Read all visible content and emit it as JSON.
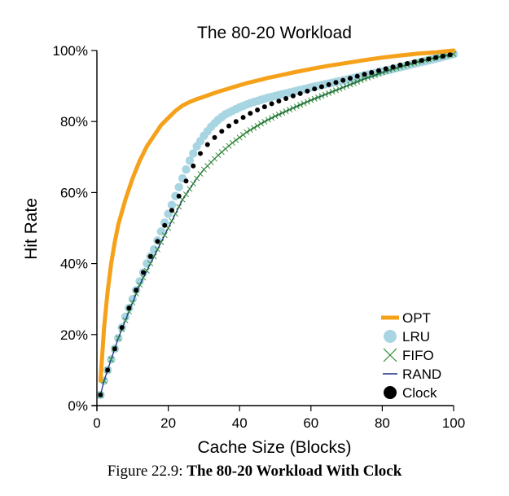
{
  "figure": {
    "caption_label": "Figure 22.9:",
    "caption_title": "The 80-20 Workload With Clock"
  },
  "chart_data": {
    "type": "line",
    "title": "The 80-20 Workload",
    "xlabel": "Cache Size (Blocks)",
    "ylabel": "Hit Rate",
    "xlim": [
      0,
      100
    ],
    "ylim": [
      0,
      100
    ],
    "x_ticks": [
      0,
      20,
      40,
      60,
      80,
      100
    ],
    "x_tick_labels": [
      "0",
      "20",
      "40",
      "60",
      "80",
      "100"
    ],
    "y_ticks": [
      0,
      20,
      40,
      60,
      80,
      100
    ],
    "y_tick_labels": [
      "0%",
      "20%",
      "40%",
      "60%",
      "80%",
      "100%"
    ],
    "grid": false,
    "legend_position": "bottom-right",
    "x": [
      1,
      2,
      3,
      4,
      5,
      6,
      8,
      10,
      12,
      14,
      16,
      18,
      20,
      22,
      24,
      26,
      28,
      30,
      32,
      34,
      36,
      38,
      40,
      42,
      44,
      46,
      48,
      50,
      55,
      60,
      65,
      70,
      75,
      80,
      85,
      90,
      95,
      100
    ],
    "series": [
      {
        "name": "OPT",
        "color": "#f5a11a",
        "style": "thick-line",
        "values": [
          7,
          22,
          32,
          40,
          46,
          51,
          58,
          64,
          69,
          73,
          76,
          79,
          81,
          83,
          84.5,
          85.5,
          86.3,
          87,
          87.7,
          88.4,
          89,
          89.6,
          90.2,
          90.8,
          91.3,
          91.8,
          92.3,
          92.7,
          93.8,
          94.8,
          95.7,
          96.5,
          97.3,
          98,
          98.6,
          99.1,
          99.5,
          100
        ]
      },
      {
        "name": "LRU",
        "color": "#a8d5e2",
        "style": "big-dots",
        "values": [
          3,
          7,
          10,
          13,
          16,
          19,
          25,
          30,
          35,
          40,
          44,
          49,
          54,
          59,
          64,
          69,
          73,
          76,
          78.5,
          80.5,
          82,
          83,
          84,
          84.8,
          85.5,
          86.1,
          86.7,
          87.2,
          88.4,
          89.6,
          90.7,
          91.8,
          93,
          94.1,
          95.3,
          96.5,
          97.7,
          99
        ]
      },
      {
        "name": "FIFO",
        "color": "#2b8c2b",
        "style": "x-markers",
        "values": [
          3,
          7,
          10,
          13,
          16,
          19,
          24,
          29,
          34,
          38,
          42,
          46,
          50,
          54,
          58,
          61,
          64,
          66.5,
          68.5,
          70.5,
          72.3,
          74,
          75.5,
          77,
          78.2,
          79.4,
          80.5,
          81.5,
          83.8,
          86,
          88,
          90,
          92,
          93.8,
          95.4,
          96.8,
          98,
          99
        ]
      },
      {
        "name": "RAND",
        "color": "#1c2e8a",
        "style": "thin-line",
        "values": [
          3,
          7,
          10,
          13,
          16,
          19,
          24,
          29,
          34,
          38,
          42,
          46,
          50,
          54,
          58,
          61,
          64,
          66.5,
          68.5,
          70.5,
          72.3,
          74,
          75.5,
          77,
          78.2,
          79.4,
          80.5,
          81.5,
          83.8,
          86,
          88,
          90,
          92,
          93.8,
          95.4,
          96.8,
          98,
          99
        ]
      },
      {
        "name": "Clock",
        "color": "#000000",
        "style": "small-dots",
        "values": [
          3,
          7,
          10,
          13,
          16,
          19,
          25,
          30,
          35,
          40,
          44,
          48.5,
          53,
          57,
          61,
          65.5,
          69.5,
          72.5,
          74.5,
          76.5,
          78,
          79.5,
          80.5,
          81.8,
          82.8,
          83.7,
          84.6,
          85.4,
          87.2,
          88.9,
          90.4,
          91.9,
          93.3,
          94.6,
          95.9,
          97,
          98,
          99
        ]
      }
    ]
  }
}
